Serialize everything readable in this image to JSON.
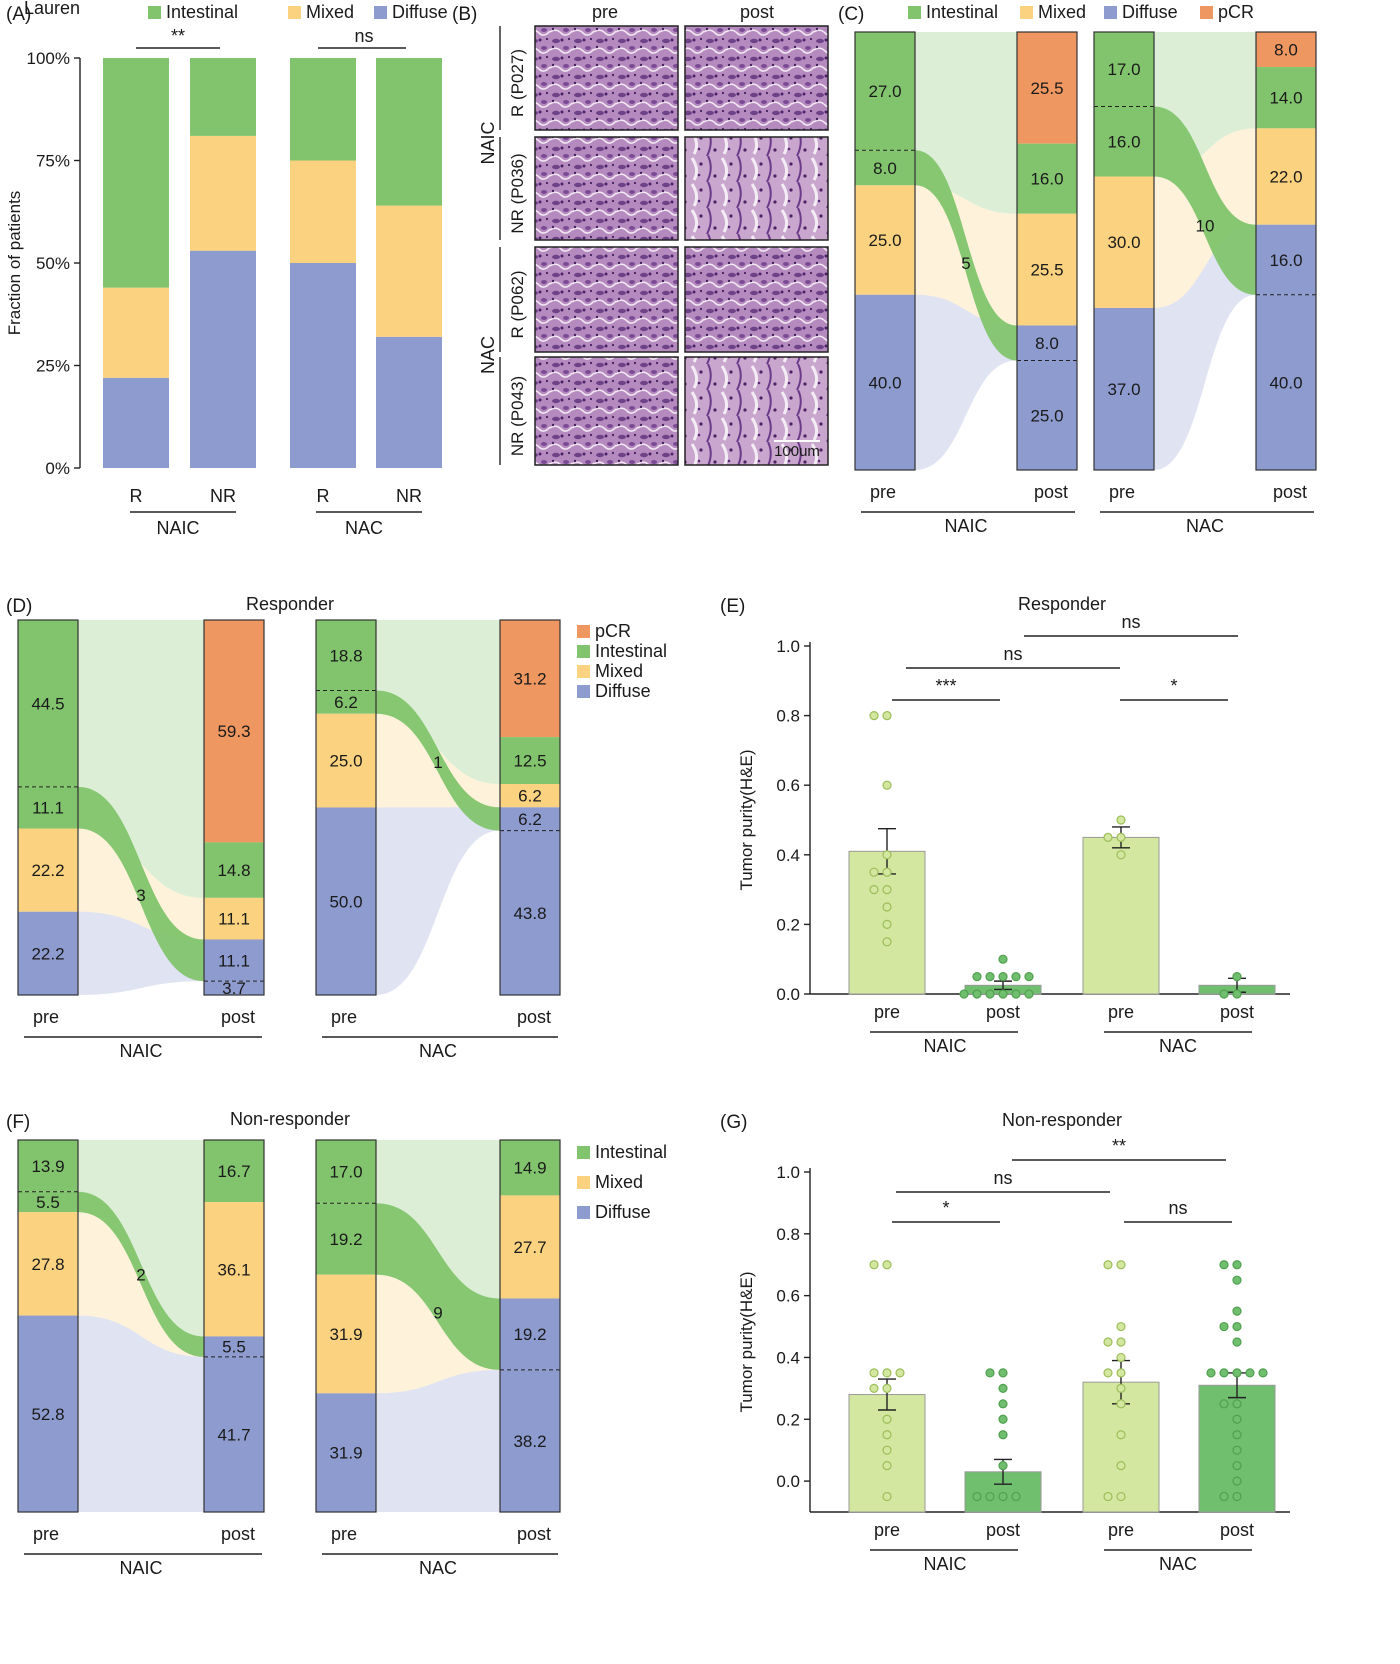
{
  "colors": {
    "intestinal": "#82c46d",
    "mixed": "#fbd27f",
    "diffuse": "#8d9bcf",
    "pcr": "#ee9761",
    "bar_light": "#d4e7a0",
    "bar_dark": "#6fbf6f",
    "he_purple": "#8c5a9a"
  },
  "panels": {
    "A": "(A)",
    "B": "(B)",
    "C": "(C)",
    "D": "(D)",
    "E": "(E)",
    "F": "(F)",
    "G": "(G)"
  },
  "legend": {
    "lauren": "Lauren",
    "intestinal": "Intestinal",
    "mixed": "Mixed",
    "diffuse": "Diffuse",
    "pcr": "pCR"
  },
  "groups": {
    "naic": "NAIC",
    "nac": "NAC",
    "r": "R",
    "nr": "NR",
    "pre": "pre",
    "post": "post"
  },
  "titles": {
    "responder": "Responder",
    "non_responder": "Non-responder"
  },
  "B": {
    "col_pre": "pre",
    "col_post": "post",
    "row_r_naic": "R (P027)",
    "row_nr_naic": "NR (P036)",
    "row_r_nac": "R (P062)",
    "row_nr_nac": "NR (P043)",
    "group_naic": "NAIC",
    "group_nac": "NAC",
    "scale_bar": "100um"
  },
  "chart_data": [
    {
      "panel": "A",
      "type": "bar",
      "stacked": true,
      "ylabel": "Fraction of patients",
      "yticks": [
        "0%",
        "25%",
        "50%",
        "75%",
        "100%"
      ],
      "ylim": [
        0,
        100
      ],
      "categories": [
        "R",
        "NR",
        "R",
        "NR"
      ],
      "groups": [
        "NAIC",
        "NAIC",
        "NAC",
        "NAC"
      ],
      "series": [
        {
          "name": "Diffuse",
          "values": [
            22,
            53,
            50,
            32
          ]
        },
        {
          "name": "Mixed",
          "values": [
            22,
            28,
            25,
            32
          ]
        },
        {
          "name": "Intestinal",
          "values": [
            56,
            19,
            25,
            36
          ]
        }
      ],
      "significance": [
        {
          "label": "**",
          "group": "NAIC"
        },
        {
          "label": "ns",
          "group": "NAC"
        }
      ],
      "legend": "top"
    },
    {
      "panel": "C",
      "type": "alluvial",
      "group": "NAIC",
      "pre": [
        {
          "class": "intestinal",
          "value": 27.0
        },
        {
          "class": "intestinal",
          "value": 8.0,
          "label": "8.0"
        },
        {
          "class": "mixed",
          "value": 25.0
        },
        {
          "class": "diffuse",
          "value": 40.0
        }
      ],
      "post": [
        {
          "class": "pcr",
          "value": 25.5
        },
        {
          "class": "intestinal",
          "value": 16.0
        },
        {
          "class": "mixed",
          "value": 25.5
        },
        {
          "class": "diffuse",
          "value": 8.0
        },
        {
          "class": "diffuse",
          "value": 25.0
        }
      ],
      "flow_label": "5"
    },
    {
      "panel": "C",
      "type": "alluvial",
      "group": "NAC",
      "pre": [
        {
          "class": "intestinal",
          "value": 17.0
        },
        {
          "class": "intestinal",
          "value": 16.0
        },
        {
          "class": "mixed",
          "value": 30.0
        },
        {
          "class": "diffuse",
          "value": 37.0
        }
      ],
      "post": [
        {
          "class": "pcr",
          "value": 8.0
        },
        {
          "class": "intestinal",
          "value": 14.0
        },
        {
          "class": "mixed",
          "value": 22.0
        },
        {
          "class": "diffuse",
          "value": 16.0
        },
        {
          "class": "diffuse",
          "value": 40.0
        }
      ],
      "flow_label": "10"
    },
    {
      "panel": "D",
      "type": "alluvial",
      "group": "NAIC",
      "title": "Responder",
      "pre": [
        {
          "class": "intestinal",
          "value": 44.5
        },
        {
          "class": "intestinal",
          "value": 11.1
        },
        {
          "class": "mixed",
          "value": 22.2
        },
        {
          "class": "diffuse",
          "value": 22.2
        }
      ],
      "post": [
        {
          "class": "pcr",
          "value": 59.3
        },
        {
          "class": "intestinal",
          "value": 14.8
        },
        {
          "class": "mixed",
          "value": 11.1
        },
        {
          "class": "diffuse",
          "value": 11.1
        },
        {
          "class": "diffuse",
          "value": 3.7
        }
      ],
      "flow_label": "3"
    },
    {
      "panel": "D",
      "type": "alluvial",
      "group": "NAC",
      "pre": [
        {
          "class": "intestinal",
          "value": 18.8
        },
        {
          "class": "intestinal",
          "value": 6.2
        },
        {
          "class": "mixed",
          "value": 25.0
        },
        {
          "class": "diffuse",
          "value": 50.0
        }
      ],
      "post": [
        {
          "class": "pcr",
          "value": 31.2
        },
        {
          "class": "intestinal",
          "value": 12.5
        },
        {
          "class": "mixed",
          "value": 6.2
        },
        {
          "class": "diffuse",
          "value": 6.2
        },
        {
          "class": "diffuse",
          "value": 43.8
        }
      ],
      "flow_label": "1"
    },
    {
      "panel": "E",
      "type": "bar",
      "title": "Responder",
      "ylabel": "Tumor purity(H&E)",
      "yticks": [
        "0.0",
        "0.2",
        "0.4",
        "0.6",
        "0.8",
        "1.0"
      ],
      "ylim": [
        0,
        1
      ],
      "categories": [
        "pre",
        "post",
        "pre",
        "post"
      ],
      "groups": [
        "NAIC",
        "NAIC",
        "NAC",
        "NAC"
      ],
      "values": [
        0.41,
        0.025,
        0.45,
        0.025
      ],
      "sem": [
        0.065,
        0.012,
        0.03,
        0.02
      ],
      "points": [
        [
          0.8,
          0.8,
          0.6,
          0.4,
          0.35,
          0.35,
          0.3,
          0.3,
          0.25,
          0.2,
          0.15
        ],
        [
          0.1,
          0.05,
          0.05,
          0.05,
          0.05,
          0.05,
          0,
          0,
          0,
          0,
          0,
          0
        ],
        [
          0.5,
          0.45,
          0.45,
          0.4
        ],
        [
          0.05,
          0,
          0
        ]
      ],
      "significance": [
        {
          "label": "***",
          "pair": "NAIC pre vs post"
        },
        {
          "label": "ns",
          "pair": "NAIC pre vs NAC pre"
        },
        {
          "label": "ns",
          "pair": "NAIC post vs NAC post"
        },
        {
          "label": "*",
          "pair": "NAC pre vs post"
        }
      ]
    },
    {
      "panel": "F",
      "type": "alluvial",
      "group": "NAIC",
      "title": "Non-responder",
      "pre": [
        {
          "class": "intestinal",
          "value": 13.9
        },
        {
          "class": "intestinal",
          "value": 5.5
        },
        {
          "class": "mixed",
          "value": 27.8
        },
        {
          "class": "diffuse",
          "value": 52.8
        }
      ],
      "post": [
        {
          "class": "intestinal",
          "value": 16.7
        },
        {
          "class": "mixed",
          "value": 36.1
        },
        {
          "class": "diffuse",
          "value": 5.5
        },
        {
          "class": "diffuse",
          "value": 41.7
        }
      ],
      "flow_label": "2"
    },
    {
      "panel": "F",
      "type": "alluvial",
      "group": "NAC",
      "pre": [
        {
          "class": "intestinal",
          "value": 17.0
        },
        {
          "class": "intestinal",
          "value": 19.2
        },
        {
          "class": "mixed",
          "value": 31.9
        },
        {
          "class": "diffuse",
          "value": 31.9
        }
      ],
      "post": [
        {
          "class": "intestinal",
          "value": 14.9
        },
        {
          "class": "mixed",
          "value": 27.7
        },
        {
          "class": "diffuse",
          "value": 19.2
        },
        {
          "class": "diffuse",
          "value": 38.2
        }
      ],
      "flow_label": "9"
    },
    {
      "panel": "G",
      "type": "bar",
      "title": "Non-responder",
      "ylabel": "Tumor purity(H&E)",
      "yticks": [
        "0.0",
        "0.2",
        "0.4",
        "0.6",
        "0.8",
        "1.0"
      ],
      "ylim": [
        -0.1,
        1.0
      ],
      "categories": [
        "pre",
        "post",
        "pre",
        "post"
      ],
      "groups": [
        "NAIC",
        "NAIC",
        "NAC",
        "NAC"
      ],
      "values": [
        0.28,
        0.03,
        0.32,
        0.31
      ],
      "sem": [
        0.05,
        0.04,
        0.07,
        0.04
      ],
      "points": [
        [
          0.7,
          0.7,
          0.35,
          0.35,
          0.35,
          0.3,
          0.3,
          0.2,
          0.15,
          0.1,
          0.05,
          -0.05
        ],
        [
          0.35,
          0.35,
          0.3,
          0.25,
          0.2,
          0.15,
          0.05,
          -0.05,
          -0.05,
          -0.05,
          -0.05
        ],
        [
          0.7,
          0.7,
          0.5,
          0.45,
          0.45,
          0.4,
          0.35,
          0.35,
          0.3,
          0.25,
          0.15,
          0.05,
          -0.05,
          -0.05
        ],
        [
          0.7,
          0.7,
          0.65,
          0.55,
          0.5,
          0.5,
          0.45,
          0.35,
          0.35,
          0.35,
          0.35,
          0.35,
          0.25,
          0.25,
          0.2,
          0.15,
          0.1,
          0.05,
          0.0,
          -0.05,
          -0.05
        ]
      ],
      "significance": [
        {
          "label": "*",
          "pair": "NAIC pre vs post"
        },
        {
          "label": "ns",
          "pair": "NAIC pre vs NAC pre"
        },
        {
          "label": "**",
          "pair": "NAIC post vs NAC post"
        },
        {
          "label": "ns",
          "pair": "NAC pre vs post"
        }
      ]
    }
  ]
}
